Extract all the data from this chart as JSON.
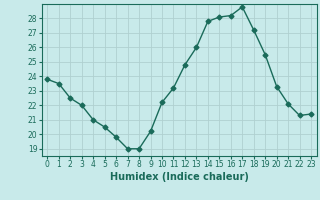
{
  "x": [
    0,
    1,
    2,
    3,
    4,
    5,
    6,
    7,
    8,
    9,
    10,
    11,
    12,
    13,
    14,
    15,
    16,
    17,
    18,
    19,
    20,
    21,
    22,
    23
  ],
  "y": [
    23.8,
    23.5,
    22.5,
    22.0,
    21.0,
    20.5,
    19.8,
    19.0,
    19.0,
    20.2,
    22.2,
    23.2,
    24.8,
    26.0,
    27.8,
    28.1,
    28.2,
    28.8,
    27.2,
    25.5,
    23.3,
    22.1,
    21.3,
    21.4
  ],
  "line_color": "#1a6b5a",
  "marker": "D",
  "markersize": 2.5,
  "bg_color": "#c8eaea",
  "grid_color": "#b0d0d0",
  "xlabel": "Humidex (Indice chaleur)",
  "xlim": [
    -0.5,
    23.5
  ],
  "ylim": [
    18.5,
    29.0
  ],
  "yticks": [
    19,
    20,
    21,
    22,
    23,
    24,
    25,
    26,
    27,
    28
  ],
  "xticks": [
    0,
    1,
    2,
    3,
    4,
    5,
    6,
    7,
    8,
    9,
    10,
    11,
    12,
    13,
    14,
    15,
    16,
    17,
    18,
    19,
    20,
    21,
    22,
    23
  ],
  "tick_label_fontsize": 5.5,
  "xlabel_fontsize": 7.0,
  "linewidth": 1.0
}
